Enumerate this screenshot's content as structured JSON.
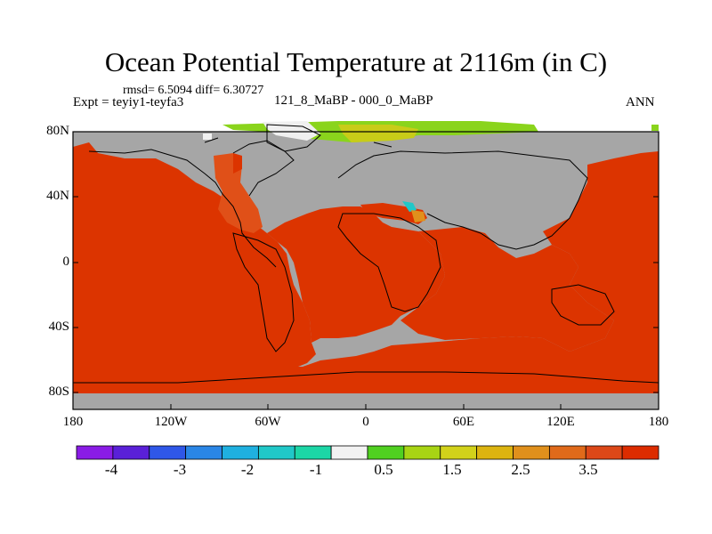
{
  "title": "Ocean Potential Temperature at 2116m (in C)",
  "stats": "rmsd= 6.5094  diff= 6.30727",
  "expt": "Expt = teyiy1-teyfa3",
  "subtitle": "121_8_MaBP - 000_0_MaBP",
  "season": "ANN",
  "lat_labels": [
    "80N",
    "40N",
    "0",
    "40S",
    "80S"
  ],
  "lon_labels": [
    "180",
    "120W",
    "60W",
    "0",
    "60E",
    "120E",
    "180"
  ],
  "colorbar": {
    "colors": [
      "#8a1ce6",
      "#5a20d8",
      "#2f57e8",
      "#2a86e6",
      "#1fb0e0",
      "#20c8c8",
      "#1cd6a6",
      "#f2f2f2",
      "#50d020",
      "#a8d414",
      "#d2d21a",
      "#dcb410",
      "#e0901c",
      "#e06a1a",
      "#dc4818",
      "#dc2c00"
    ],
    "labels": [
      "-4",
      "-3",
      "-2",
      "-1",
      "0.5",
      "1.5",
      "2.5",
      "3.5"
    ]
  },
  "palette": {
    "land": "#a6a6a6",
    "ocean_warm": "#dc3400",
    "ocean_mid": "#e05018",
    "arctic_green": "#8ad41c",
    "arctic_yellow": "#c8cc18",
    "arctic_white": "#f0f0f0"
  }
}
